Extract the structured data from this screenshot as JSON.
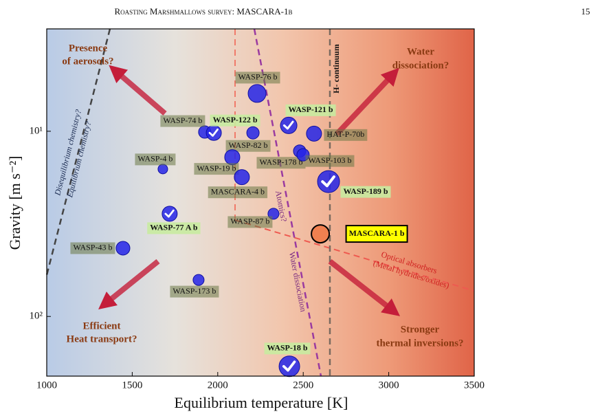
{
  "header": {
    "title": "Roasting Marshmallows survey: MASCARA-1b",
    "page": "15"
  },
  "chart_data": {
    "type": "scatter",
    "x_label": "Equilibrium temperature [K]",
    "y_label": "Gravity [m s⁻²]",
    "xlim": [
      1000,
      3500
    ],
    "xticks": [
      1000,
      1500,
      2000,
      2500,
      3000,
      3500
    ],
    "ylim": [
      2.8,
      210
    ],
    "y_log": true,
    "y_inverted": true,
    "yticks": [
      {
        "value": 10,
        "label": "10¹"
      },
      {
        "value": 100,
        "label": "10²"
      }
    ],
    "point_color": "#2424e8",
    "target_color": "#f08050",
    "points": [
      {
        "name": "WASP-76 b",
        "x": 2230,
        "y": 6.25,
        "detected": false
      },
      {
        "name": "WASP-74 b",
        "x": 1924,
        "y": 10.1,
        "detected": false
      },
      {
        "name": "WASP-122 b",
        "x": 1977,
        "y": 10.2,
        "detected": true
      },
      {
        "name": "WASP-121 b",
        "x": 2415,
        "y": 9.3,
        "detected": true
      },
      {
        "name": "HAT-P-70b",
        "x": 2563,
        "y": 10.3,
        "detected": false
      },
      {
        "name": "WASP-82 b",
        "x": 2206,
        "y": 10.2,
        "detected": false
      },
      {
        "name": "WASP-19 b",
        "x": 2085,
        "y": 13.8,
        "detected": false
      },
      {
        "name": "WASP-4 b",
        "x": 1679,
        "y": 16.0,
        "detected": false
      },
      {
        "name": "WASP-178 b",
        "x": 2479,
        "y": 12.8,
        "detected": false
      },
      {
        "name": "WASP-103 b",
        "x": 2499,
        "y": 13.4,
        "detected": false
      },
      {
        "name": "MASCARA-4 b",
        "x": 2141,
        "y": 17.7,
        "detected": false
      },
      {
        "name": "WASP-189 b",
        "x": 2648,
        "y": 18.7,
        "detected": true
      },
      {
        "name": "WASP-77 A b",
        "x": 1719,
        "y": 27.9,
        "detected": true
      },
      {
        "name": "WASP-87 b",
        "x": 2326,
        "y": 27.9,
        "detected": false
      },
      {
        "name": "MASCARA-1 b",
        "x": 2600,
        "y": 35.8,
        "detected": false,
        "target": true
      },
      {
        "name": "WASP-43 b",
        "x": 1446,
        "y": 42.8,
        "detected": false
      },
      {
        "name": "WASP-173 b",
        "x": 1888,
        "y": 63.5,
        "detected": false
      },
      {
        "name": "WASP-18 b",
        "x": 2419,
        "y": 186,
        "detected": true
      }
    ],
    "annotations": {
      "aerosols": [
        "Presence",
        "of aerosols?"
      ],
      "water": [
        "Water",
        "dissociation?"
      ],
      "heat": [
        "Efficient",
        "Heat transport?"
      ],
      "inversions": [
        "Stronger",
        "thermal inversions?"
      ],
      "h_minus": "H- continuum",
      "atomics": "Atomics?",
      "water_line": "Water dissociation",
      "diseq": "Disequilibrium chemistry?",
      "eq": "Equilibrium chemistry?",
      "optical": [
        "Optical absorbers",
        "(Metal hydrides/oxides)"
      ]
    }
  }
}
